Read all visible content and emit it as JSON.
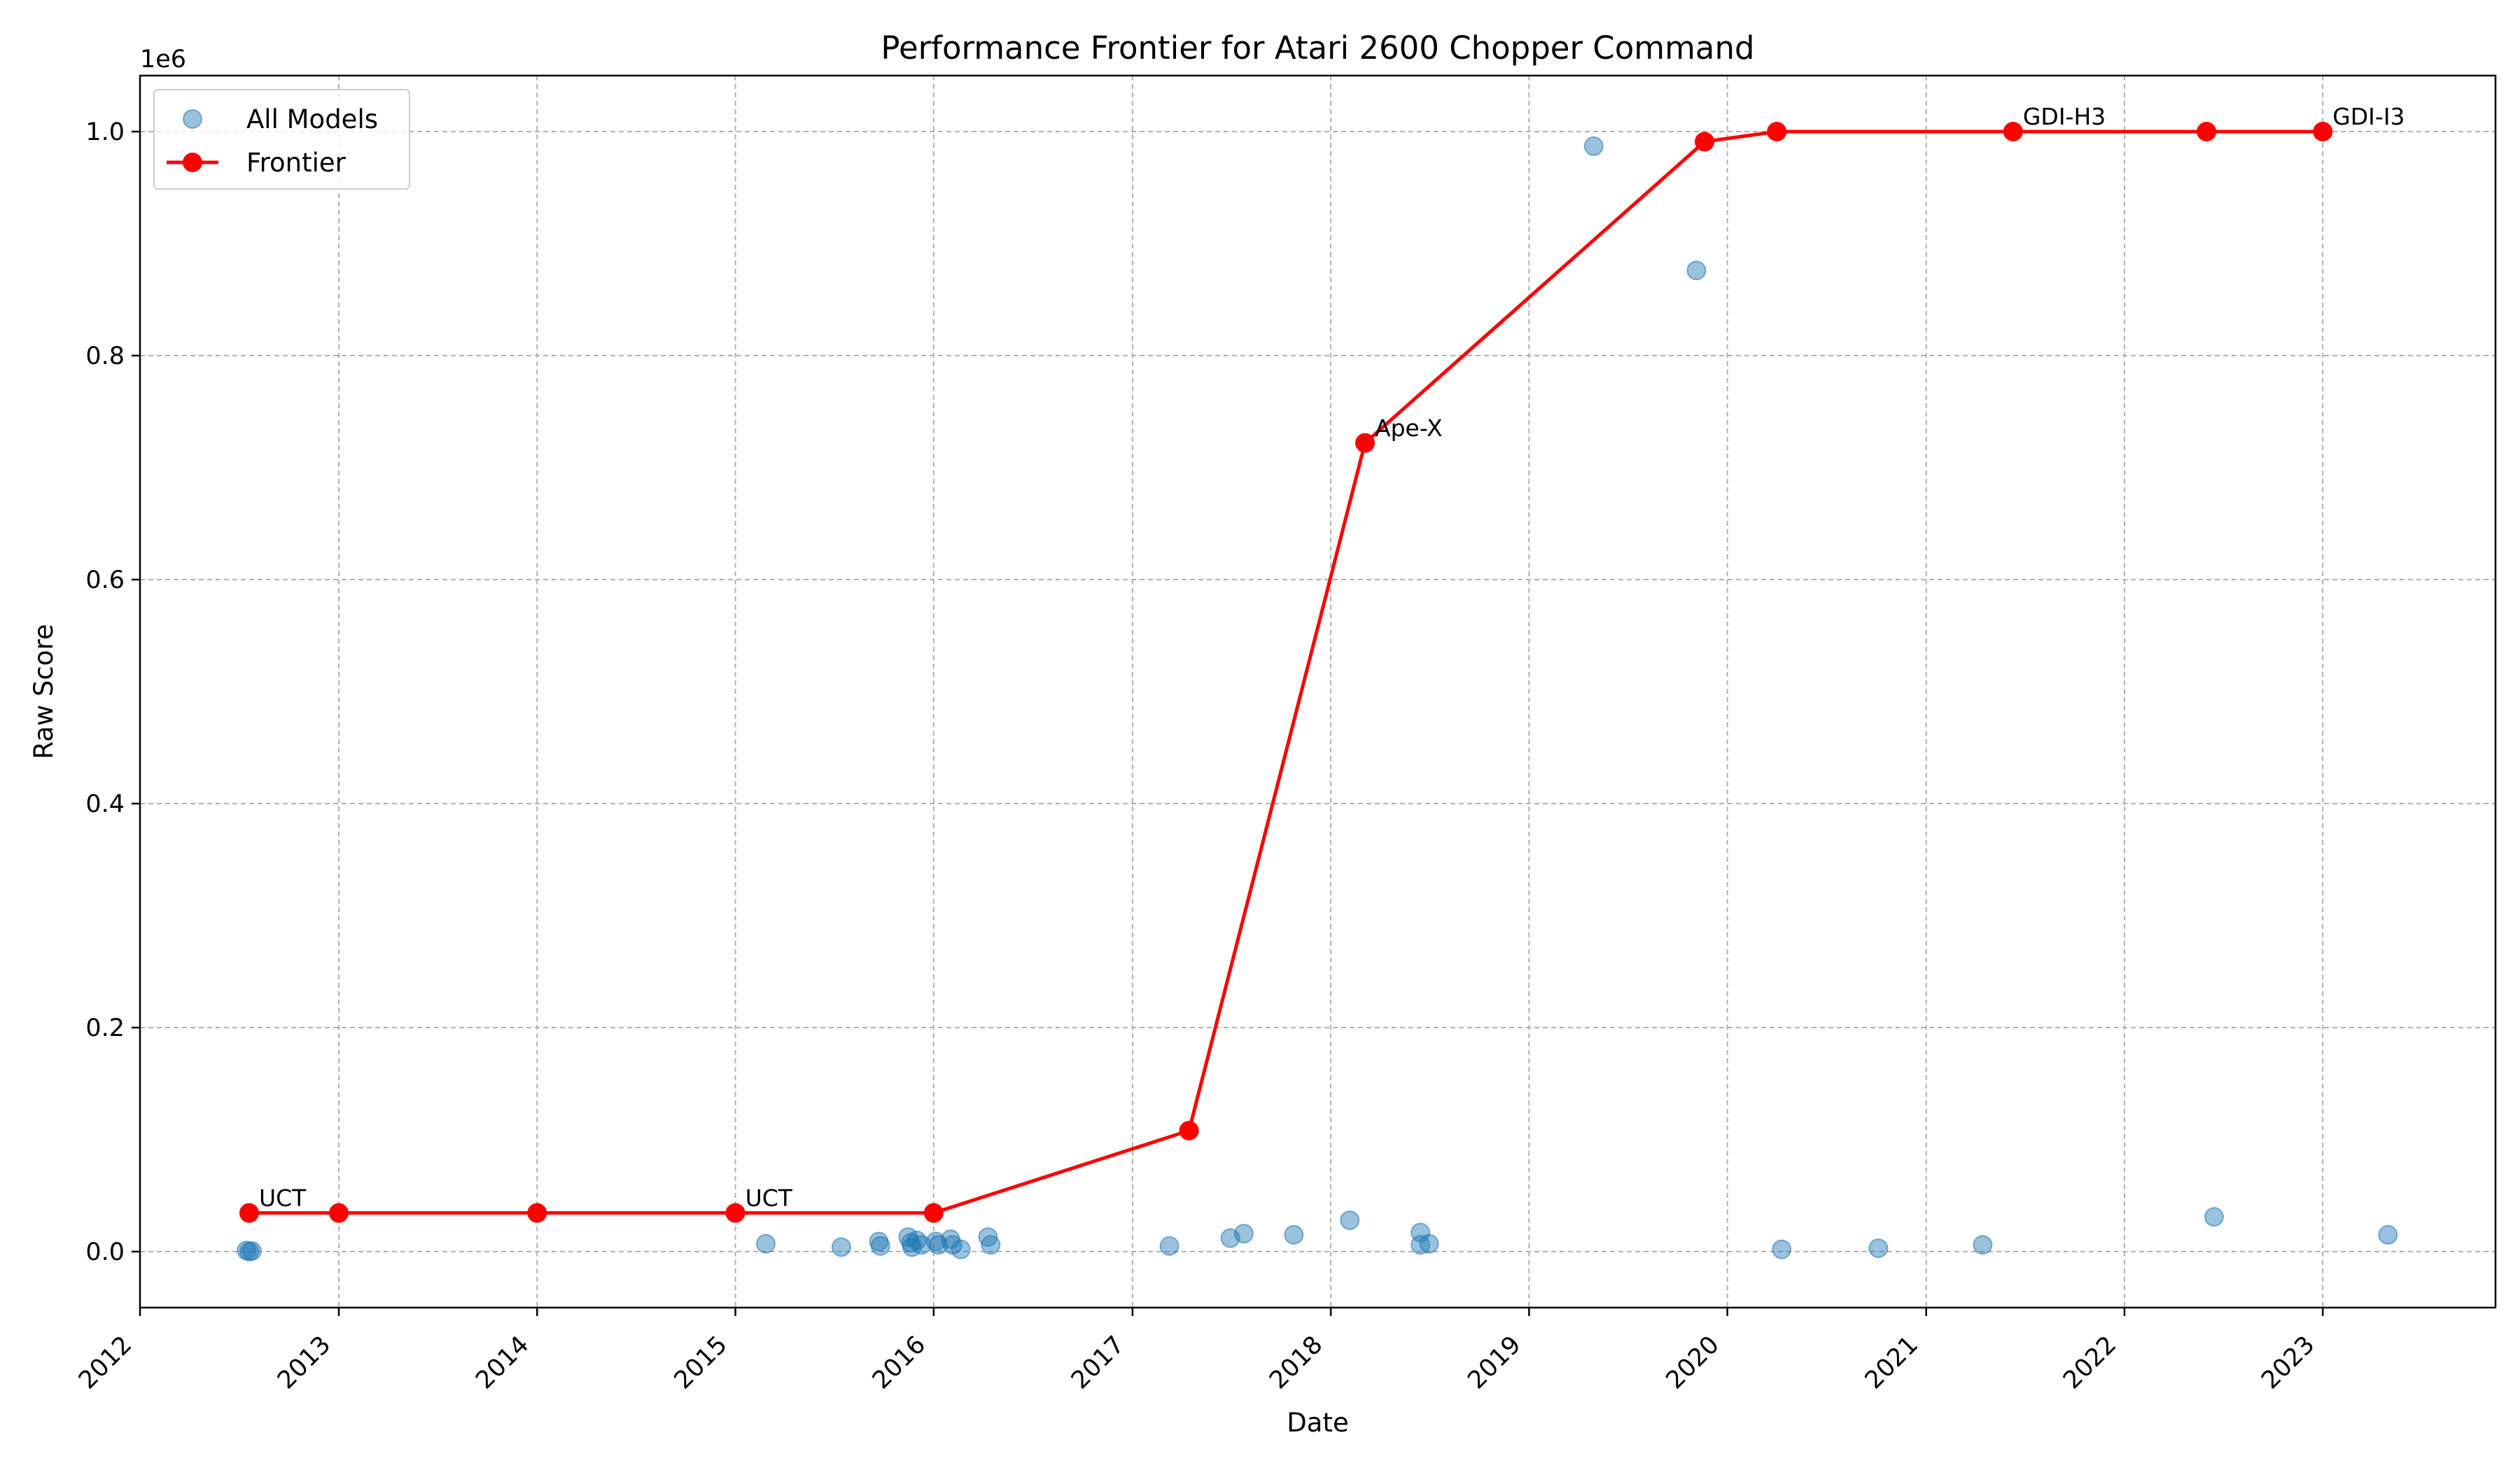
{
  "chart_data": {
    "type": "scatter",
    "title": "Performance Frontier for Atari 2600 Chopper Command",
    "xlabel": "Date",
    "ylabel": "Raw Score",
    "y_offset_label": "1e6",
    "xlim": [
      "2012-01-01",
      "2023-11-15"
    ],
    "ylim": [
      -0.05,
      1.05
    ],
    "x_ticks": [
      "2012",
      "2013",
      "2014",
      "2015",
      "2016",
      "2017",
      "2018",
      "2019",
      "2020",
      "2021",
      "2022",
      "2023"
    ],
    "y_ticks": [
      0.0,
      0.2,
      0.4,
      0.6,
      0.8,
      1.0
    ],
    "y_tick_labels": [
      "0.0",
      "0.2",
      "0.4",
      "0.6",
      "0.8",
      "1.0"
    ],
    "grid": true,
    "legend_position": "top-left",
    "legend": [
      {
        "name": "All Models",
        "kind": "scatter",
        "color": "#1f77b4"
      },
      {
        "name": "Frontier",
        "kind": "line",
        "color": "#ff0000"
      }
    ],
    "series": [
      {
        "name": "All Models",
        "kind": "scatter",
        "color": "#1f77b4",
        "points": [
          {
            "x": "2012-07-15",
            "y": 0.001
          },
          {
            "x": "2012-07-20",
            "y": 0.0
          },
          {
            "x": "2012-07-25",
            "y": 0.0005
          },
          {
            "x": "2015-02-26",
            "y": 0.007
          },
          {
            "x": "2015-07-15",
            "y": 0.004
          },
          {
            "x": "2015-09-22",
            "y": 0.009
          },
          {
            "x": "2015-09-25",
            "y": 0.005
          },
          {
            "x": "2015-11-15",
            "y": 0.013
          },
          {
            "x": "2015-11-20",
            "y": 0.008
          },
          {
            "x": "2015-11-22",
            "y": 0.004
          },
          {
            "x": "2015-12-01",
            "y": 0.01
          },
          {
            "x": "2015-12-10",
            "y": 0.006
          },
          {
            "x": "2016-01-05",
            "y": 0.009
          },
          {
            "x": "2016-01-10",
            "y": 0.006
          },
          {
            "x": "2016-02-01",
            "y": 0.011
          },
          {
            "x": "2016-02-05",
            "y": 0.006
          },
          {
            "x": "2016-02-20",
            "y": 0.002
          },
          {
            "x": "2016-04-10",
            "y": 0.013
          },
          {
            "x": "2016-04-15",
            "y": 0.006
          },
          {
            "x": "2017-03-10",
            "y": 0.005
          },
          {
            "x": "2017-06-30",
            "y": 0.012
          },
          {
            "x": "2017-07-25",
            "y": 0.016
          },
          {
            "x": "2017-10-25",
            "y": 0.015
          },
          {
            "x": "2018-02-05",
            "y": 0.028
          },
          {
            "x": "2018-06-15",
            "y": 0.017
          },
          {
            "x": "2018-06-15",
            "y": 0.006
          },
          {
            "x": "2018-07-01",
            "y": 0.007
          },
          {
            "x": "2019-04-30",
            "y": 0.987
          },
          {
            "x": "2019-11-05",
            "y": 0.876
          },
          {
            "x": "2020-04-10",
            "y": 0.002
          },
          {
            "x": "2020-10-05",
            "y": 0.003
          },
          {
            "x": "2021-04-15",
            "y": 0.006
          },
          {
            "x": "2022-06-15",
            "y": 0.031
          },
          {
            "x": "2023-05-01",
            "y": 0.015
          }
        ]
      },
      {
        "name": "Frontier",
        "kind": "line",
        "color": "#ff0000",
        "points": [
          {
            "x": "2012-07-20",
            "y": 0.0345,
            "label": "UCT"
          },
          {
            "x": "2013-01-01",
            "y": 0.0345
          },
          {
            "x": "2014-01-01",
            "y": 0.0345
          },
          {
            "x": "2015-01-01",
            "y": 0.0345,
            "label": "UCT"
          },
          {
            "x": "2016-01-01",
            "y": 0.0345
          },
          {
            "x": "2017-04-15",
            "y": 0.108
          },
          {
            "x": "2018-03-05",
            "y": 0.722,
            "label": "Ape-X"
          },
          {
            "x": "2019-11-20",
            "y": 0.991
          },
          {
            "x": "2020-04-01",
            "y": 1.0
          },
          {
            "x": "2021-06-10",
            "y": 1.0,
            "label": "GDI-H3"
          },
          {
            "x": "2022-06-01",
            "y": 1.0
          },
          {
            "x": "2023-01-01",
            "y": 1.0,
            "label": "GDI-I3"
          }
        ]
      }
    ]
  }
}
